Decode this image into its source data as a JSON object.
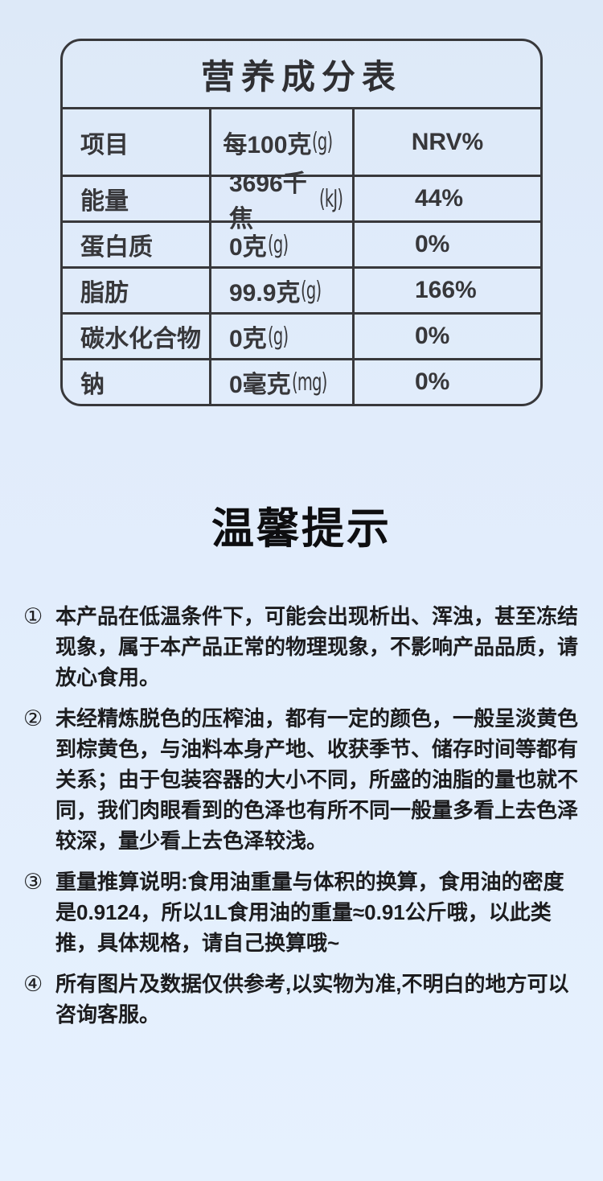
{
  "theme": {
    "background_color": "#e1ecfb",
    "table_border_color": "#38383b",
    "table_text_color": "#37373a",
    "body_text_color": "#1c1c1e"
  },
  "nutrition_table": {
    "title": "营养成分表",
    "header": {
      "item_label": "项目",
      "per_100g_label": "每100克",
      "per_100g_unit": "(g)",
      "nrv_label": "NRV%"
    },
    "rows": [
      {
        "item": "能量",
        "value": "3696千焦",
        "unit": "(kJ)",
        "nrv": "44%"
      },
      {
        "item": "蛋白质",
        "value": "0克",
        "unit": "(g)",
        "nrv": "0%"
      },
      {
        "item": "脂肪",
        "value": "99.9克",
        "unit": "(g)",
        "nrv": "166%"
      },
      {
        "item": "碳水化合物",
        "value": "0克",
        "unit": "(g)",
        "nrv": "0%"
      },
      {
        "item": "钠",
        "value": "0毫克",
        "unit": "(mg)",
        "nrv": "0%"
      }
    ]
  },
  "tips": {
    "title": "温馨提示",
    "items": [
      {
        "marker": "①",
        "text": "本产品在低温条件下，可能会出现析出、浑浊，甚至冻结现象，属于本产品正常的物理现象，不影响产品品质，请放心食用。"
      },
      {
        "marker": "②",
        "text": "未经精炼脱色的压榨油，都有一定的颜色，一般呈淡黄色到棕黄色，与油料本身产地、收获季节、储存时间等都有关系；由于包装容器的大小不同，所盛的油脂的量也就不同，我们肉眼看到的色泽也有所不同一般量多看上去色泽较深，量少看上去色泽较浅。"
      },
      {
        "marker": "③",
        "text": "重量推算说明:食用油重量与体积的换算，食用油的密度是0.9124，所以1L食用油的重量≈0.91公斤哦，以此类推，具体规格，请自己换算哦~"
      },
      {
        "marker": "④",
        "text": "所有图片及数据仅供参考,以实物为准,不明白的地方可以咨询客服。"
      }
    ]
  }
}
